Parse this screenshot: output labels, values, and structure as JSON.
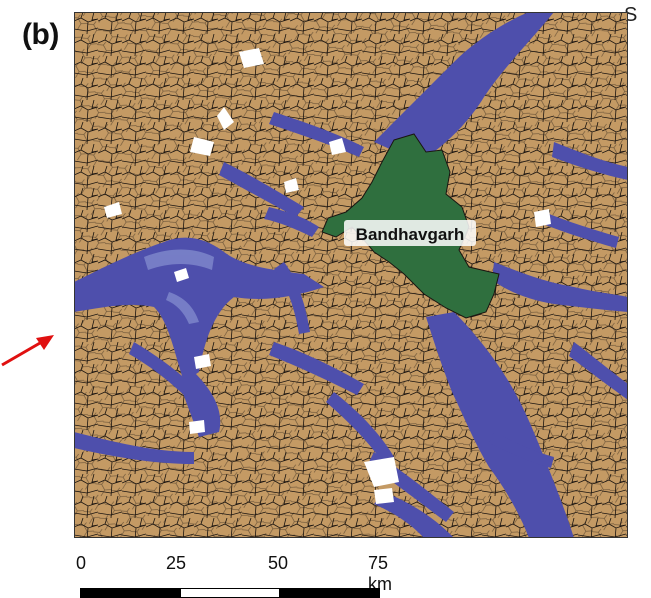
{
  "figure": {
    "panel_label": "(b)",
    "corner_letter": "S"
  },
  "map": {
    "place_label": "Bandhavgarh",
    "colors": {
      "land": "#c49a64",
      "water_overlay": "#4e4fac",
      "water_light": "#7b83c9",
      "reserve": "#2f6f3e",
      "boundary": "#1a1410",
      "blank": "#ffffff"
    }
  },
  "annotation": {
    "arrow_color": "#e01010",
    "arrow_icon": "red-arrow-icon"
  },
  "scale_bar": {
    "ticks": [
      "0",
      "25",
      "50",
      "75 km"
    ],
    "segment_colors": [
      "#000000",
      "#ffffff",
      "#000000"
    ]
  }
}
